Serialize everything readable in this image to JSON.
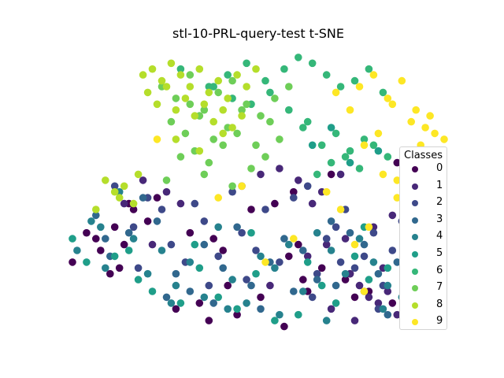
{
  "chart_data": {
    "type": "scatter",
    "title": "stl-10-PRL-query-test t-SNE",
    "xlabel": "",
    "ylabel": "",
    "axes_visible": false,
    "grid": false,
    "legend": {
      "title": "Classes",
      "placement": "right"
    },
    "series": [
      {
        "name": "0",
        "color": "#440154",
        "x": [
          -38,
          -35,
          -41,
          -33,
          -36,
          -30,
          -31,
          -16,
          -11,
          -9,
          -25,
          -23,
          -28,
          -29,
          -32,
          -3,
          2,
          6,
          8,
          9,
          -1,
          -6,
          12,
          17,
          19,
          5,
          7,
          -14,
          -19,
          -8,
          -12,
          4,
          22,
          27,
          18,
          14,
          28
        ],
        "y": [
          -3,
          -6,
          -8,
          -10,
          -4,
          -5,
          -9,
          -3,
          -4,
          -6,
          -1,
          3,
          1,
          2,
          -2,
          1,
          2,
          4,
          -11,
          -13,
          -14,
          -17,
          -9,
          -11,
          -14,
          -7,
          -5,
          -15,
          -16,
          -12,
          -18,
          -19,
          -13,
          -15,
          -10,
          7,
          9
        ]
      },
      {
        "name": "1",
        "color": "#482878",
        "x": [
          -26,
          -21,
          -18,
          -5,
          -1,
          3,
          7,
          10,
          12,
          16,
          18,
          20,
          22,
          24,
          26,
          28,
          30,
          32,
          34,
          36,
          -30,
          -24,
          1,
          14,
          19,
          21,
          25,
          29,
          31,
          35,
          9,
          13,
          17,
          23,
          27,
          33
        ],
        "y": [
          6,
          4,
          2,
          5,
          7,
          8,
          6,
          2,
          4,
          7,
          -10,
          -12,
          -14,
          -15,
          -13,
          -17,
          -16,
          -18,
          -11,
          -14,
          2,
          -5,
          -12,
          -16,
          -18,
          -13,
          -9,
          -8,
          -3,
          -6,
          -7,
          -5,
          -4,
          -2,
          0,
          -10
        ]
      },
      {
        "name": "2",
        "color": "#3e4989",
        "x": [
          -28,
          -25,
          -22,
          -20,
          -17,
          -15,
          -13,
          -10,
          -7,
          -5,
          -2,
          0,
          3,
          6,
          9,
          11,
          13,
          15,
          17,
          19,
          21,
          23,
          25,
          27,
          29,
          31,
          -32,
          -27,
          -12,
          -4,
          10,
          16,
          24,
          33
        ],
        "y": [
          -2,
          3,
          1,
          -5,
          -8,
          2,
          -1,
          -7,
          4,
          -3,
          -6,
          1,
          -8,
          3,
          5,
          -10,
          -4,
          -2,
          1,
          -9,
          -7,
          -3,
          -12,
          -6,
          -1,
          -15,
          5,
          -9,
          -12,
          -11,
          -14,
          -8,
          -16,
          -4
        ]
      },
      {
        "name": "3",
        "color": "#31688e",
        "x": [
          -36,
          -33,
          -29,
          -26,
          -23,
          -19,
          -16,
          -13,
          -9,
          -6,
          -3,
          1,
          4,
          8,
          11,
          14,
          18,
          21,
          24,
          28,
          31,
          -34,
          -21,
          -11,
          -1,
          6,
          15,
          26
        ],
        "y": [
          0,
          -7,
          -3,
          3,
          -1,
          -10,
          -13,
          -5,
          -9,
          -2,
          -12,
          -8,
          -4,
          -6,
          -11,
          -1,
          -3,
          -5,
          -10,
          -8,
          -7,
          -4,
          -14,
          -15,
          -16,
          -13,
          -12,
          -17
        ]
      },
      {
        "name": "4",
        "color": "#26828e",
        "x": [
          -40,
          -37,
          -34,
          -31,
          -28,
          -25,
          -22,
          -19,
          -16,
          -13,
          -10,
          -7,
          -4,
          -1,
          2,
          5,
          8,
          11,
          14,
          17,
          20,
          23,
          26,
          29,
          32,
          -35,
          -20,
          -8,
          3,
          13,
          25
        ],
        "y": [
          -6,
          -1,
          -9,
          4,
          -4,
          -10,
          -6,
          -12,
          -8,
          -14,
          -2,
          -11,
          -15,
          -7,
          -9,
          -5,
          -13,
          -3,
          -6,
          -10,
          -4,
          -8,
          -12,
          -14,
          -11,
          -2,
          -15,
          -16,
          -17,
          -18,
          -16
        ]
      },
      {
        "name": "5",
        "color": "#1f9e89",
        "x": [
          -41,
          -38,
          -32,
          -27,
          -24,
          -18,
          -14,
          -10,
          -6,
          -2,
          2,
          7,
          12,
          15,
          19,
          22,
          26,
          30,
          34,
          37,
          -29,
          -15,
          -3,
          9,
          21,
          31,
          10,
          14,
          18,
          24
        ],
        "y": [
          -4,
          -8,
          -7,
          -11,
          -13,
          -15,
          -9,
          -14,
          -16,
          -10,
          -18,
          -17,
          -12,
          -15,
          -7,
          -11,
          -9,
          -13,
          -14,
          -16,
          -6,
          -5,
          -3,
          -8,
          -2,
          -10,
          12,
          15,
          9,
          11
        ]
      },
      {
        "name": "6",
        "color": "#35b779",
        "x": [
          -18,
          -12,
          -8,
          -4,
          0,
          4,
          7,
          10,
          13,
          16,
          19,
          22,
          25,
          12,
          15,
          18,
          21,
          8,
          5,
          1,
          -3,
          -7,
          -11,
          14,
          17,
          20,
          23,
          26,
          11,
          9
        ],
        "y": [
          25,
          22,
          24,
          26,
          23,
          25,
          27,
          26,
          24,
          22,
          23,
          25,
          21,
          12,
          14,
          11,
          13,
          15,
          18,
          21,
          19,
          20,
          22,
          9,
          10,
          8,
          12,
          10,
          7,
          16
        ]
      },
      {
        "name": "7",
        "color": "#6ece58",
        "x": [
          -22,
          -19,
          -16,
          -13,
          -10,
          -7,
          -4,
          -1,
          2,
          5,
          -20,
          -17,
          -14,
          -11,
          -8,
          -5,
          -2,
          1,
          -18,
          -15,
          -12,
          -9,
          -6,
          -3,
          -21,
          -13,
          -7,
          0,
          3,
          -16
        ],
        "y": [
          22,
          20,
          24,
          18,
          21,
          23,
          19,
          17,
          20,
          22,
          16,
          14,
          17,
          13,
          15,
          18,
          12,
          16,
          10,
          11,
          9,
          12,
          14,
          8,
          6,
          7,
          5,
          10,
          13,
          19
        ]
      },
      {
        "name": "8",
        "color": "#b5de2b",
        "x": [
          -26,
          -24,
          -22,
          -20,
          -18,
          -16,
          -14,
          -12,
          -10,
          -8,
          -6,
          -4,
          -2,
          -25,
          -23,
          -21,
          -19,
          -17,
          -15,
          -13,
          -11,
          -9,
          -7,
          -5,
          -34,
          -32,
          -30,
          -28,
          -36,
          -31,
          -27,
          -19,
          -14,
          -9
        ],
        "y": [
          24,
          25,
          23,
          26,
          24,
          22,
          25,
          21,
          23,
          20,
          24,
          22,
          25,
          21,
          19,
          22,
          18,
          20,
          17,
          19,
          16,
          18,
          15,
          17,
          6,
          4,
          5,
          2,
          1,
          3,
          7,
          13,
          11,
          14
        ]
      },
      {
        "name": "9",
        "color": "#fde725",
        "x": [
          20,
          23,
          26,
          29,
          32,
          34,
          36,
          35,
          33,
          31,
          38,
          37,
          30,
          27,
          24,
          21,
          18,
          15,
          25,
          28,
          22,
          19,
          16,
          13,
          -23,
          -10,
          -5,
          0,
          6,
          28,
          33,
          21
        ],
        "y": [
          22,
          24,
          20,
          23,
          18,
          15,
          14,
          17,
          12,
          16,
          13,
          10,
          11,
          19,
          14,
          12,
          18,
          21,
          7,
          6,
          -2,
          -5,
          1,
          4,
          13,
          3,
          5,
          -8,
          -4,
          3,
          -11,
          -13
        ]
      }
    ],
    "xlim": [
      -43,
      40
    ],
    "ylim": [
      -20,
      29
    ]
  }
}
